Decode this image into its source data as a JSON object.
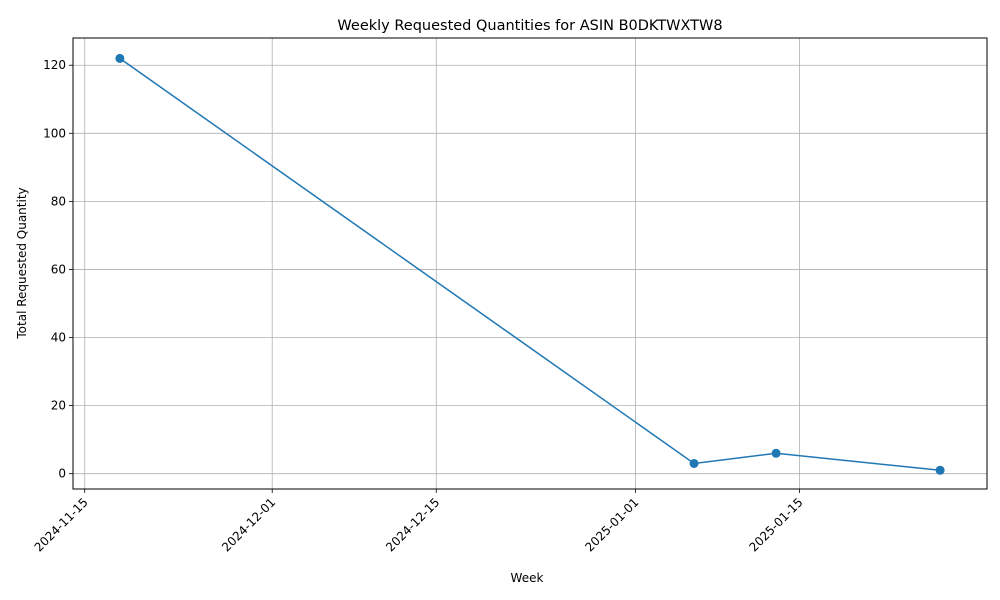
{
  "chart_data": {
    "type": "line",
    "title": "Weekly Requested Quantities for ASIN B0DKTWXTW8",
    "xlabel": "Week",
    "ylabel": "Total Requested Quantity",
    "x_axis_type": "date",
    "xlim": [
      "2024-11-14",
      "2025-01-31"
    ],
    "ylim": [
      -4.5,
      128.0
    ],
    "x_ticks": [
      "2024-11-15",
      "2024-12-01",
      "2024-12-15",
      "2025-01-01",
      "2025-01-15"
    ],
    "x_tick_rotation_deg": 45,
    "y_ticks": [
      0,
      20,
      40,
      60,
      80,
      100,
      120
    ],
    "grid": true,
    "series": [
      {
        "marker": "circle",
        "color": "#1f77b4",
        "x": [
          "2024-11-18",
          "2025-01-06",
          "2025-01-13",
          "2025-01-27"
        ],
        "y": [
          122,
          3,
          6,
          1
        ]
      }
    ]
  }
}
